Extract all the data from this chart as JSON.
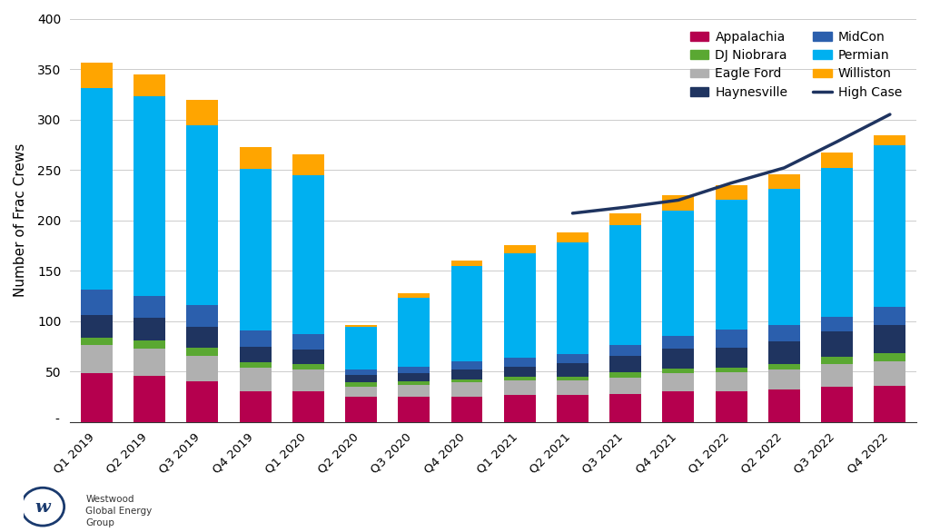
{
  "ylabel": "Number of Frac Crews",
  "categories": [
    "Q1 2019",
    "Q2 2019",
    "Q3 2019",
    "Q4 2019",
    "Q1 2020",
    "Q2 2020",
    "Q3 2020",
    "Q4 2020",
    "Q1 2021",
    "Q2 2021",
    "Q3 2021",
    "Q4 2021",
    "Q1 2022",
    "Q2 2022",
    "Q3 2022",
    "Q4 2022"
  ],
  "series": {
    "Appalachia": [
      48,
      46,
      40,
      30,
      30,
      25,
      25,
      25,
      27,
      27,
      28,
      30,
      30,
      32,
      35,
      36
    ],
    "Eagle Ford": [
      28,
      27,
      26,
      24,
      22,
      10,
      12,
      14,
      14,
      14,
      16,
      18,
      19,
      20,
      22,
      24
    ],
    "DJ Niobrara": [
      8,
      8,
      8,
      5,
      5,
      4,
      3,
      3,
      4,
      4,
      5,
      5,
      5,
      5,
      8,
      8
    ],
    "Haynesville": [
      22,
      22,
      20,
      16,
      15,
      8,
      8,
      10,
      10,
      13,
      17,
      20,
      20,
      23,
      25,
      28
    ],
    "MidCon": [
      25,
      22,
      22,
      16,
      15,
      5,
      7,
      8,
      9,
      9,
      10,
      12,
      18,
      16,
      14,
      18
    ],
    "Permian": [
      200,
      198,
      178,
      160,
      158,
      42,
      68,
      95,
      103,
      111,
      119,
      125,
      128,
      135,
      148,
      160
    ],
    "Williston": [
      25,
      22,
      25,
      22,
      20,
      2,
      5,
      5,
      8,
      10,
      12,
      15,
      15,
      15,
      15,
      10
    ]
  },
  "high_case_x": [
    9,
    10,
    11,
    12,
    13,
    14,
    15
  ],
  "high_case_y": [
    207,
    213,
    220,
    237,
    252,
    278,
    305
  ],
  "colors": {
    "Appalachia": "#b5004e",
    "Eagle Ford": "#b0b0b0",
    "DJ Niobrara": "#5aa832",
    "Haynesville": "#1f3460",
    "MidCon": "#2b5fad",
    "Permian": "#00b0f0",
    "Williston": "#ffa500"
  },
  "high_case_color": "#1f3460",
  "ylim": [
    0,
    400
  ],
  "yticks": [
    50,
    100,
    150,
    200,
    250,
    300,
    350,
    400
  ],
  "ytick_labels": [
    "50",
    "100",
    "150",
    "200",
    "250",
    "300",
    "350",
    "400"
  ],
  "background_color": "#ffffff",
  "grid_color": "#cccccc",
  "legend_left_col": [
    "Appalachia",
    "Eagle Ford",
    "MidCon",
    "Williston"
  ],
  "legend_right_col": [
    "DJ Niobrara",
    "Haynesville",
    "Permian",
    "High Case"
  ]
}
